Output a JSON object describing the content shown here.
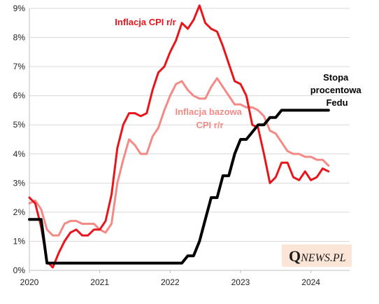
{
  "chart_data": {
    "type": "line",
    "title": "",
    "xlabel": "",
    "ylabel": "",
    "x_ticks": [
      "2020",
      "2021",
      "2022",
      "2023",
      "2024"
    ],
    "y_ticks": [
      "0%",
      "1%",
      "2%",
      "3%",
      "4%",
      "5%",
      "6%",
      "7%",
      "8%",
      "9%"
    ],
    "xlim": [
      2020.0,
      2024.55
    ],
    "ylim": [
      0,
      9
    ],
    "grid": "horizontal",
    "series": [
      {
        "name": "Inflacja CPI r/r",
        "color": "#e8151b",
        "label_lines": [
          "Inflacja CPI r/r"
        ],
        "x": [
          2020.0,
          2020.083,
          2020.167,
          2020.25,
          2020.333,
          2020.417,
          2020.5,
          2020.583,
          2020.667,
          2020.75,
          2020.833,
          2020.917,
          2021.0,
          2021.083,
          2021.167,
          2021.25,
          2021.333,
          2021.417,
          2021.5,
          2021.583,
          2021.667,
          2021.75,
          2021.833,
          2021.917,
          2022.0,
          2022.083,
          2022.167,
          2022.25,
          2022.333,
          2022.417,
          2022.5,
          2022.583,
          2022.667,
          2022.75,
          2022.833,
          2022.917,
          2023.0,
          2023.083,
          2023.167,
          2023.25,
          2023.333,
          2023.417,
          2023.5,
          2023.583,
          2023.667,
          2023.75,
          2023.833,
          2023.917,
          2024.0,
          2024.083,
          2024.167,
          2024.25
        ],
        "values": [
          2.5,
          2.3,
          1.5,
          0.3,
          0.1,
          0.6,
          1.0,
          1.3,
          1.4,
          1.2,
          1.2,
          1.4,
          1.4,
          1.7,
          2.6,
          4.2,
          5.0,
          5.4,
          5.4,
          5.3,
          5.4,
          6.2,
          6.8,
          7.0,
          7.5,
          7.9,
          8.5,
          8.3,
          8.6,
          9.1,
          8.5,
          8.3,
          8.2,
          7.7,
          7.1,
          6.5,
          6.4,
          6.0,
          5.0,
          4.9,
          4.0,
          3.0,
          3.2,
          3.7,
          3.7,
          3.2,
          3.1,
          3.4,
          3.1,
          3.2,
          3.5,
          3.4
        ]
      },
      {
        "name": "Inflacja bazowa CPI r/r",
        "color": "#f48a86",
        "label_lines": [
          "Inflacja bazowa",
          "CPI r/r"
        ],
        "x": [
          2020.0,
          2020.083,
          2020.167,
          2020.25,
          2020.333,
          2020.417,
          2020.5,
          2020.583,
          2020.667,
          2020.75,
          2020.833,
          2020.917,
          2021.0,
          2021.083,
          2021.167,
          2021.25,
          2021.333,
          2021.417,
          2021.5,
          2021.583,
          2021.667,
          2021.75,
          2021.833,
          2021.917,
          2022.0,
          2022.083,
          2022.167,
          2022.25,
          2022.333,
          2022.417,
          2022.5,
          2022.583,
          2022.667,
          2022.75,
          2022.833,
          2022.917,
          2023.0,
          2023.083,
          2023.167,
          2023.25,
          2023.333,
          2023.417,
          2023.5,
          2023.583,
          2023.667,
          2023.75,
          2023.833,
          2023.917,
          2024.0,
          2024.083,
          2024.167,
          2024.25
        ],
        "values": [
          2.3,
          2.4,
          2.1,
          1.4,
          1.2,
          1.2,
          1.6,
          1.7,
          1.7,
          1.6,
          1.6,
          1.6,
          1.4,
          1.3,
          1.6,
          3.0,
          3.8,
          4.5,
          4.3,
          4.0,
          4.0,
          4.6,
          4.9,
          5.5,
          6.0,
          6.4,
          6.5,
          6.2,
          6.0,
          5.9,
          5.9,
          6.3,
          6.6,
          6.3,
          6.0,
          5.7,
          5.7,
          5.6,
          5.6,
          5.5,
          5.3,
          4.8,
          4.7,
          4.4,
          4.1,
          4.0,
          4.0,
          3.9,
          3.9,
          3.8,
          3.8,
          3.6
        ]
      },
      {
        "name": "Stopa procentowa Fedu",
        "color": "#000000",
        "label_lines": [
          "Stopa",
          "procentowa",
          "Fedu"
        ],
        "x": [
          2020.0,
          2020.167,
          2020.25,
          2020.333,
          2020.5,
          2020.75,
          2021.0,
          2021.25,
          2021.5,
          2021.75,
          2022.0,
          2022.167,
          2022.25,
          2022.333,
          2022.417,
          2022.5,
          2022.583,
          2022.667,
          2022.75,
          2022.833,
          2022.917,
          2023.0,
          2023.083,
          2023.167,
          2023.25,
          2023.333,
          2023.417,
          2023.5,
          2023.583,
          2023.75,
          2024.0,
          2024.25
        ],
        "values": [
          1.75,
          1.75,
          0.25,
          0.25,
          0.25,
          0.25,
          0.25,
          0.25,
          0.25,
          0.25,
          0.25,
          0.25,
          0.5,
          0.5,
          1.0,
          1.75,
          2.5,
          2.5,
          3.25,
          3.25,
          4.0,
          4.5,
          4.5,
          4.75,
          5.0,
          5.0,
          5.25,
          5.25,
          5.5,
          5.5,
          5.5,
          5.5
        ]
      }
    ]
  },
  "branding": {
    "logo_initial": "Q",
    "logo_rest": "NEWS.PL",
    "logo_bg_color": "#fbe5d6"
  }
}
